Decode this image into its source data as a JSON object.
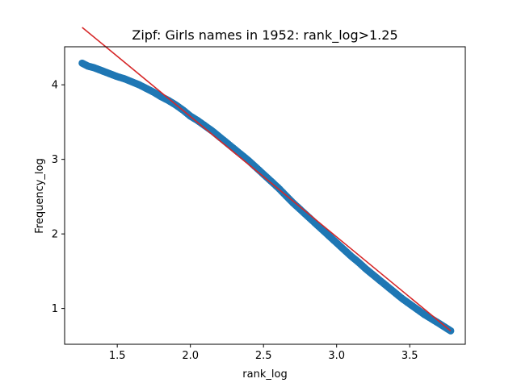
{
  "chart_data": {
    "type": "scatter",
    "title": "Zipf: Girls names in 1952: rank_log>1.25",
    "xlabel": "rank_log",
    "ylabel": "Frequency_log",
    "xlim": [
      1.14,
      3.88
    ],
    "ylim": [
      0.52,
      4.51
    ],
    "xticks": [
      1.5,
      2.0,
      2.5,
      3.0,
      3.5
    ],
    "xtick_labels": [
      "1.5",
      "2.0",
      "2.5",
      "3.0",
      "3.5"
    ],
    "yticks": [
      1,
      2,
      3,
      4
    ],
    "ytick_labels": [
      "1",
      "2",
      "3",
      "4"
    ],
    "grid": false,
    "series": [
      {
        "kind": "scatter",
        "color": "#1f77b4",
        "points": [
          [
            1.26,
            4.29
          ],
          [
            1.3,
            4.25
          ],
          [
            1.34,
            4.23
          ],
          [
            1.38,
            4.2
          ],
          [
            1.42,
            4.17
          ],
          [
            1.46,
            4.14
          ],
          [
            1.5,
            4.11
          ],
          [
            1.55,
            4.08
          ],
          [
            1.6,
            4.04
          ],
          [
            1.65,
            4.0
          ],
          [
            1.7,
            3.95
          ],
          [
            1.75,
            3.9
          ],
          [
            1.8,
            3.84
          ],
          [
            1.85,
            3.79
          ],
          [
            1.9,
            3.73
          ],
          [
            1.95,
            3.66
          ],
          [
            2.0,
            3.58
          ],
          [
            2.05,
            3.52
          ],
          [
            2.1,
            3.45
          ],
          [
            2.15,
            3.38
          ],
          [
            2.2,
            3.3
          ],
          [
            2.25,
            3.22
          ],
          [
            2.3,
            3.14
          ],
          [
            2.35,
            3.06
          ],
          [
            2.4,
            2.98
          ],
          [
            2.45,
            2.89
          ],
          [
            2.5,
            2.8
          ],
          [
            2.55,
            2.71
          ],
          [
            2.6,
            2.62
          ],
          [
            2.65,
            2.52
          ],
          [
            2.7,
            2.42
          ],
          [
            2.75,
            2.33
          ],
          [
            2.8,
            2.24
          ],
          [
            2.85,
            2.15
          ],
          [
            2.9,
            2.06
          ],
          [
            2.95,
            1.97
          ],
          [
            3.0,
            1.88
          ],
          [
            3.05,
            1.79
          ],
          [
            3.1,
            1.7
          ],
          [
            3.15,
            1.62
          ],
          [
            3.2,
            1.53
          ],
          [
            3.25,
            1.45
          ],
          [
            3.3,
            1.37
          ],
          [
            3.35,
            1.29
          ],
          [
            3.4,
            1.21
          ],
          [
            3.45,
            1.13
          ],
          [
            3.5,
            1.06
          ],
          [
            3.55,
            0.99
          ],
          [
            3.6,
            0.92
          ],
          [
            3.65,
            0.86
          ],
          [
            3.7,
            0.8
          ],
          [
            3.74,
            0.75
          ],
          [
            3.78,
            0.7
          ]
        ]
      },
      {
        "kind": "line",
        "color": "#d62728",
        "points": [
          [
            1.26,
            4.77
          ],
          [
            3.78,
            0.7
          ]
        ]
      }
    ]
  }
}
